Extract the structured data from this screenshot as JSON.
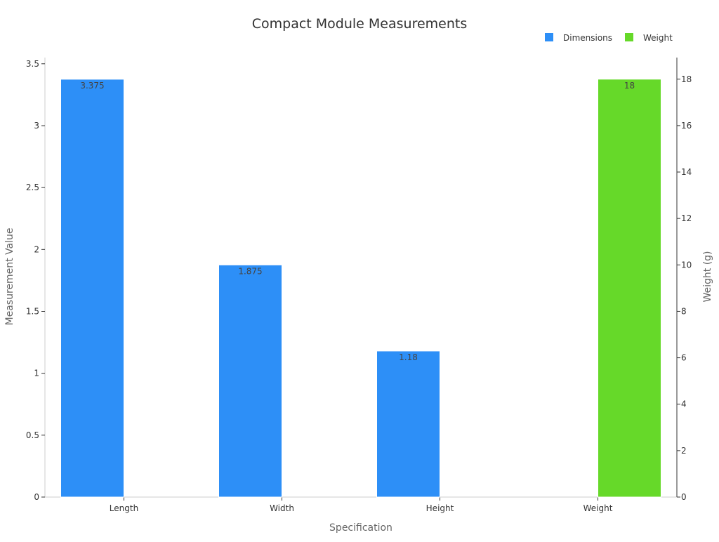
{
  "chart_data": {
    "type": "bar",
    "title": "Compact Module Measurements",
    "xlabel": "Specification",
    "ylabel": "Measurement Value",
    "y2label": "Weight (g)",
    "categories": [
      "Length",
      "Width",
      "Height",
      "Weight"
    ],
    "series": [
      {
        "name": "Dimensions",
        "axis": "left",
        "color": "#2d8ff7",
        "values": [
          3.375,
          1.875,
          1.18,
          null
        ]
      },
      {
        "name": "Weight",
        "axis": "right",
        "color": "#66d929",
        "values": [
          null,
          null,
          null,
          18
        ]
      }
    ],
    "ylim": [
      0,
      3.55
    ],
    "yticks": [
      0,
      0.5,
      1,
      1.5,
      2,
      2.5,
      3,
      3.5
    ],
    "ytick_labels": [
      "0",
      "0.5",
      "1",
      "1.5",
      "2",
      "2.5",
      "3",
      "3.5"
    ],
    "y2lim": [
      0,
      18.93
    ],
    "y2ticks": [
      0,
      2,
      4,
      6,
      8,
      10,
      12,
      14,
      16,
      18
    ],
    "y2tick_labels": [
      "0",
      "2",
      "4",
      "6",
      "8",
      "10",
      "12",
      "14",
      "16",
      "18"
    ],
    "data_labels": [
      "3.375",
      "1.875",
      "1.18",
      "18"
    ],
    "legend_position": "top-right",
    "grid": false
  }
}
